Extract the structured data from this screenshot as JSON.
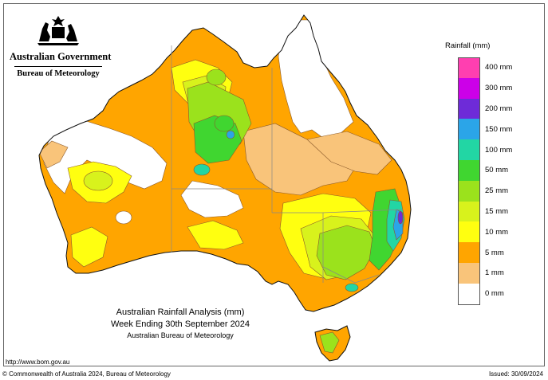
{
  "header": {
    "government": "Australian Government",
    "bureau": "Bureau of Meteorology"
  },
  "title": {
    "line1": "Australian Rainfall Analysis (mm)",
    "line2": "Week Ending 30th September 2024",
    "line3": "Australian Bureau of Meteorology"
  },
  "legend": {
    "title": "Rainfall (mm)",
    "items": [
      {
        "label": "400 mm",
        "color": "#ff3fb0"
      },
      {
        "label": "300 mm",
        "color": "#cc00e8"
      },
      {
        "label": "200 mm",
        "color": "#6e2bd8"
      },
      {
        "label": "150 mm",
        "color": "#2ba5e8"
      },
      {
        "label": "100 mm",
        "color": "#22d6a4"
      },
      {
        "label": "50 mm",
        "color": "#40d630"
      },
      {
        "label": "25 mm",
        "color": "#9be21c"
      },
      {
        "label": "15 mm",
        "color": "#d8f21c"
      },
      {
        "label": "10 mm",
        "color": "#ffff10"
      },
      {
        "label": "5 mm",
        "color": "#ffa500"
      },
      {
        "label": "1 mm",
        "color": "#f9c47a"
      },
      {
        "label": "0 mm",
        "color": "#ffffff"
      }
    ]
  },
  "footer": {
    "url": "http://www.bom.gov.au",
    "copyright": "© Commonwealth of Australia 2024, Bureau of Meteorology",
    "issued": "Issued: 30/09/2024"
  },
  "colors": {
    "outline": "#222222",
    "coast": "#111111",
    "state_border": "#888888",
    "contour": "#8b5a2b"
  },
  "icons": [
    "coat-of-arms-icon"
  ]
}
